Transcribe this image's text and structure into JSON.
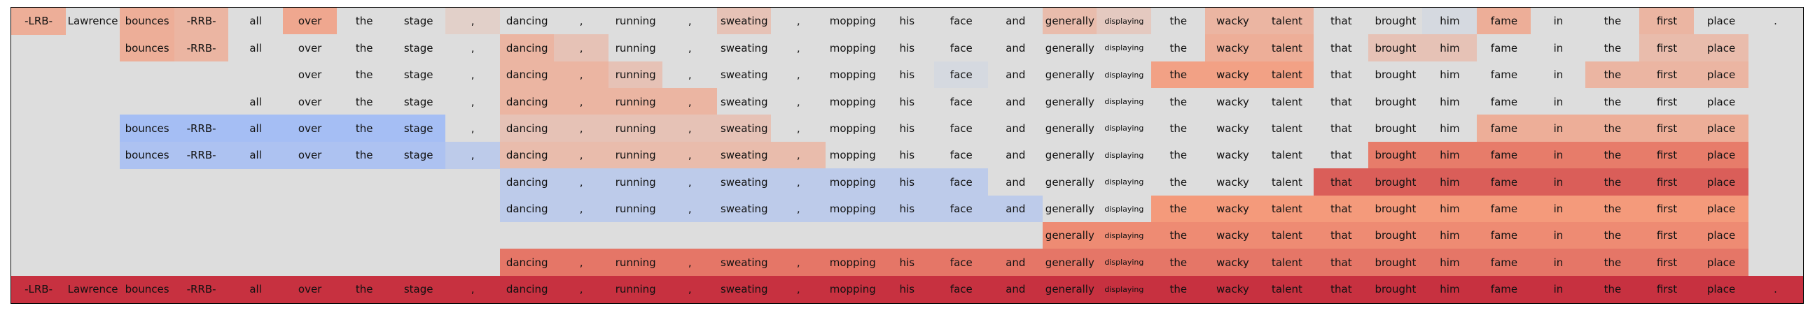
{
  "chart_data": {
    "type": "heatmap",
    "title": "",
    "tokens": [
      "-LRB-",
      "Lawrence",
      "bounces",
      "-RRB-",
      "all",
      "over",
      "the",
      "stage",
      ",",
      "dancing",
      ",",
      "running",
      ",",
      "sweating",
      ",",
      "mopping",
      "his",
      "face",
      "and",
      "generally",
      "displaying",
      "the",
      "wacky",
      "talent",
      "that",
      "brought",
      "him",
      "fame",
      "in",
      "the",
      "first",
      "place",
      "."
    ],
    "small_tokens": [
      "displaying"
    ],
    "rows": [
      {
        "span": [
          0,
          32
        ],
        "values": [
          0.35,
          0,
          0.35,
          0.3,
          0,
          0.4,
          0,
          0,
          0.1,
          0,
          0,
          0,
          0,
          0.2,
          0,
          0,
          0,
          0,
          0,
          0.25,
          0.15,
          0,
          0.3,
          0.3,
          0,
          0,
          -0.05,
          0.35,
          0,
          0,
          0.3,
          0,
          0
        ]
      },
      {
        "span": [
          2,
          31
        ],
        "values": {
          "2": 0.35,
          "3": 0.3,
          "6": 0,
          "7": 0,
          "9": 0.3,
          "10": 0.2,
          "16": 0,
          "17": 0,
          "22": 0.35,
          "23": 0.35,
          "25": 0.2,
          "26": 0.2,
          "30": 0.25,
          "31": 0.25
        }
      },
      {
        "span": [
          5,
          31
        ],
        "values": {
          "5": 0,
          "6": 0,
          "7": 0,
          "9": 0.3,
          "10": 0.3,
          "11": 0.2,
          "15": 0,
          "16": 0,
          "17": -0.05,
          "21": 0.45,
          "22": 0.45,
          "23": 0.45,
          "29": 0.3,
          "30": 0.3,
          "31": 0.3
        }
      },
      {
        "span": [
          4,
          31
        ],
        "values": {
          "4": 0,
          "5": 0,
          "6": 0,
          "7": 0,
          "9": 0.3,
          "10": 0.3,
          "11": 0.3,
          "12": 0.3,
          "28": 0,
          "29": 0,
          "30": 0,
          "31": 0
        }
      },
      {
        "span": [
          2,
          31
        ],
        "values": {
          "2": -0.35,
          "3": -0.35,
          "4": -0.35,
          "5": -0.35,
          "6": -0.35,
          "7": -0.35,
          "9": 0.2,
          "10": 0.2,
          "11": 0.2,
          "12": 0.2,
          "13": 0.2,
          "27": 0.35,
          "28": 0.35,
          "29": 0.35,
          "30": 0.35,
          "31": 0.35
        }
      },
      {
        "span": [
          2,
          31
        ],
        "values": {
          "2": -0.3,
          "3": -0.3,
          "4": -0.3,
          "5": -0.3,
          "6": -0.3,
          "7": -0.3,
          "8": -0.2,
          "9": 0.25,
          "10": 0.25,
          "11": 0.25,
          "12": 0.25,
          "13": 0.25,
          "14": 0.25,
          "25": 0.6,
          "26": 0.6,
          "27": 0.6,
          "28": 0.6,
          "29": 0.6,
          "30": 0.6,
          "31": 0.6
        }
      },
      {
        "span": [
          9,
          31
        ],
        "values": {
          "9": -0.2,
          "10": -0.2,
          "11": -0.2,
          "12": -0.2,
          "13": -0.2,
          "14": -0.2,
          "15": -0.2,
          "16": -0.2,
          "17": -0.2,
          "24": 0.7,
          "25": 0.7,
          "26": 0.7,
          "27": 0.7,
          "28": 0.7,
          "29": 0.7,
          "30": 0.7,
          "31": 0.7
        }
      },
      {
        "span": [
          9,
          31
        ],
        "values": {
          "9": -0.2,
          "10": -0.2,
          "11": -0.2,
          "12": -0.2,
          "13": -0.2,
          "14": -0.2,
          "15": -0.2,
          "16": -0.2,
          "17": -0.2,
          "18": -0.2,
          "21": 0.5,
          "22": 0.5,
          "23": 0.5,
          "24": 0.5,
          "25": 0.5,
          "26": 0.5,
          "27": 0.5,
          "28": 0.5,
          "29": 0.5,
          "30": 0.5,
          "31": 0.5
        }
      },
      {
        "span": [
          19,
          31
        ],
        "values": {
          "19": 0.55,
          "20": 0.55,
          "21": 0.55,
          "22": 0.55,
          "23": 0.55,
          "24": 0.55,
          "25": 0.55,
          "26": 0.55,
          "27": 0.55,
          "28": 0.55,
          "29": 0.55,
          "30": 0.55,
          "31": 0.55
        }
      },
      {
        "span": [
          9,
          31
        ],
        "values": {
          "9": 0.62,
          "10": 0.62,
          "11": 0.62,
          "12": 0.62,
          "13": 0.62,
          "14": 0.62,
          "15": 0.62,
          "16": 0.62,
          "17": 0.62,
          "18": 0.62,
          "19": 0.62,
          "20": 0.62,
          "21": 0.62,
          "22": 0.62,
          "23": 0.62,
          "24": 0.62,
          "25": 0.62,
          "26": 0.62,
          "27": 0.62,
          "28": 0.62,
          "29": 0.62,
          "30": 0.62,
          "31": 0.62
        }
      },
      {
        "span": [
          0,
          32
        ],
        "values": [
          0.85,
          0.85,
          0.85,
          0.85,
          0.85,
          0.85,
          0.85,
          0.85,
          0.85,
          0.85,
          0.85,
          0.85,
          0.85,
          0.85,
          0.85,
          0.85,
          0.85,
          0.85,
          0.85,
          0.85,
          0.85,
          0.85,
          0.85,
          0.85,
          0.85,
          0.85,
          0.85,
          0.85,
          0.85,
          0.85,
          0.85,
          0.85,
          0.85
        ]
      }
    ],
    "colormap": "coolwarm",
    "vmin": -1,
    "vmax": 1
  }
}
